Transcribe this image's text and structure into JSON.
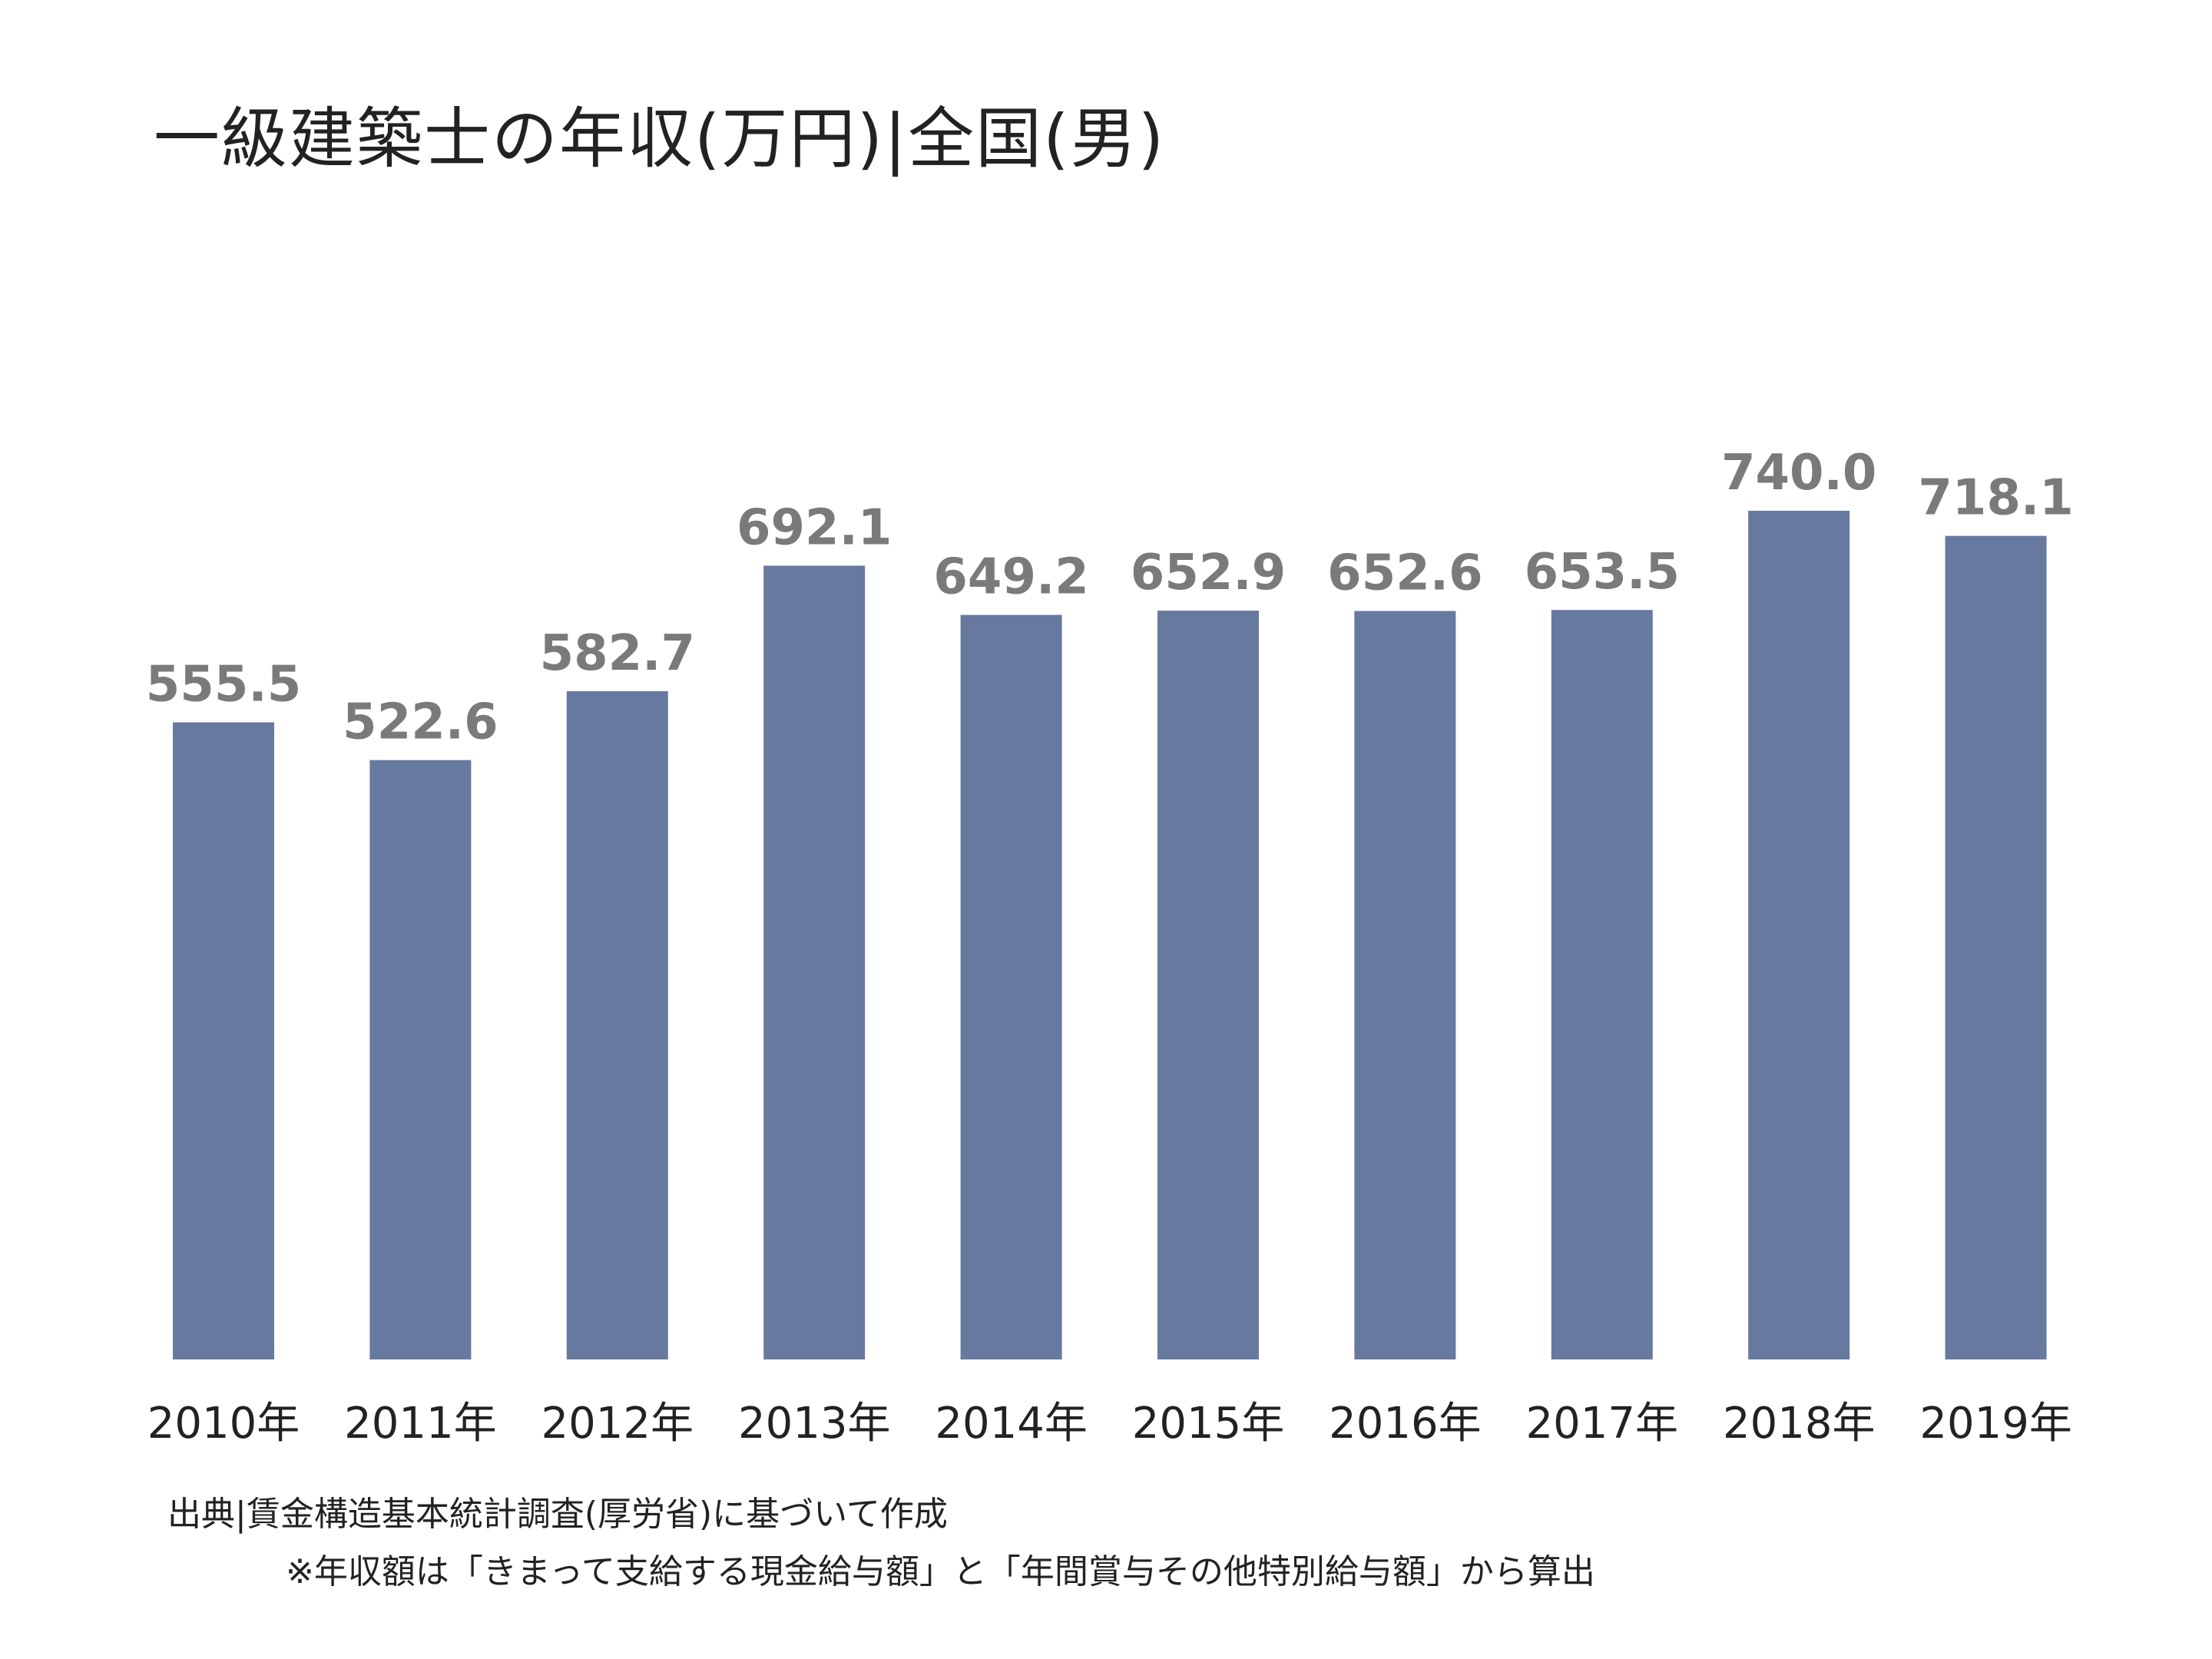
{
  "title": "一級建築士の年収(万円)|全国(男)",
  "source": "出典|賃金構造基本統計調査(厚労省)に基づいて作成",
  "note": "※年収額は「きまって支給する現金給与額」と「年間賞与その他特別給与額」から算出",
  "colors": {
    "bar": "#67799f",
    "value_label": "#7a7a7a",
    "tick_label": "#222222"
  },
  "chart_data": {
    "type": "bar",
    "title": "一級建築士の年収(万円)|全国(男)",
    "xlabel": "",
    "ylabel": "",
    "categories": [
      "2010年",
      "2011年",
      "2012年",
      "2013年",
      "2014年",
      "2015年",
      "2016年",
      "2017年",
      "2018年",
      "2019年"
    ],
    "values": [
      555.5,
      522.6,
      582.7,
      692.1,
      649.2,
      652.9,
      652.6,
      653.5,
      740.0,
      718.1
    ],
    "value_labels": [
      "555.5",
      "522.6",
      "582.7",
      "692.1",
      "649.2",
      "652.9",
      "652.6",
      "653.5",
      "740.0",
      "718.1"
    ],
    "ylim": [
      0,
      740
    ],
    "grid": false,
    "legend": "none"
  }
}
